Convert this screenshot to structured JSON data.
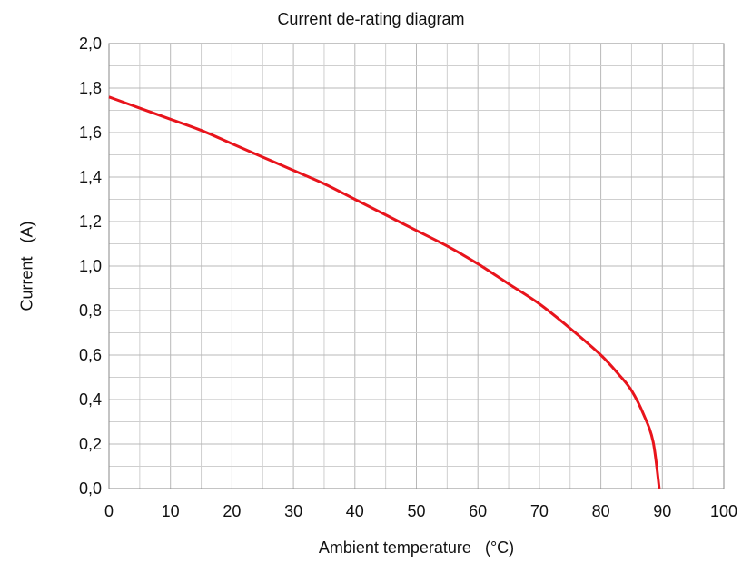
{
  "chart_data": {
    "type": "line",
    "title": "Current de-rating diagram",
    "xlabel": "Ambient temperature   (°C)",
    "ylabel": "Current   (A)",
    "xlim": [
      0,
      100
    ],
    "ylim": [
      0,
      2.0
    ],
    "grid": true,
    "x_minor_grid": true,
    "y_minor_grid": true,
    "x_ticks": [
      0,
      10,
      20,
      30,
      40,
      50,
      60,
      70,
      80,
      90,
      100
    ],
    "x_tick_labels": [
      "0",
      "10",
      "20",
      "30",
      "40",
      "50",
      "60",
      "70",
      "80",
      "90",
      "100"
    ],
    "y_ticks": [
      0,
      0.2,
      0.4,
      0.6,
      0.8,
      1.0,
      1.2,
      1.4,
      1.6,
      1.8,
      2.0
    ],
    "y_tick_labels": [
      "0,0",
      "0,2",
      "0,4",
      "0,6",
      "0,8",
      "1,0",
      "1,2",
      "1,4",
      "1,6",
      "1,8",
      "2,0"
    ],
    "series": [
      {
        "color": "#e8141c",
        "x": [
          0,
          5,
          10,
          15,
          20,
          25,
          30,
          35,
          40,
          45,
          50,
          55,
          60,
          65,
          70,
          75,
          80,
          83,
          85,
          87,
          88.5,
          89.5
        ],
        "y": [
          1.76,
          1.71,
          1.66,
          1.61,
          1.55,
          1.49,
          1.43,
          1.37,
          1.3,
          1.23,
          1.16,
          1.09,
          1.01,
          0.92,
          0.83,
          0.72,
          0.6,
          0.51,
          0.44,
          0.33,
          0.21,
          0.0
        ]
      }
    ]
  }
}
